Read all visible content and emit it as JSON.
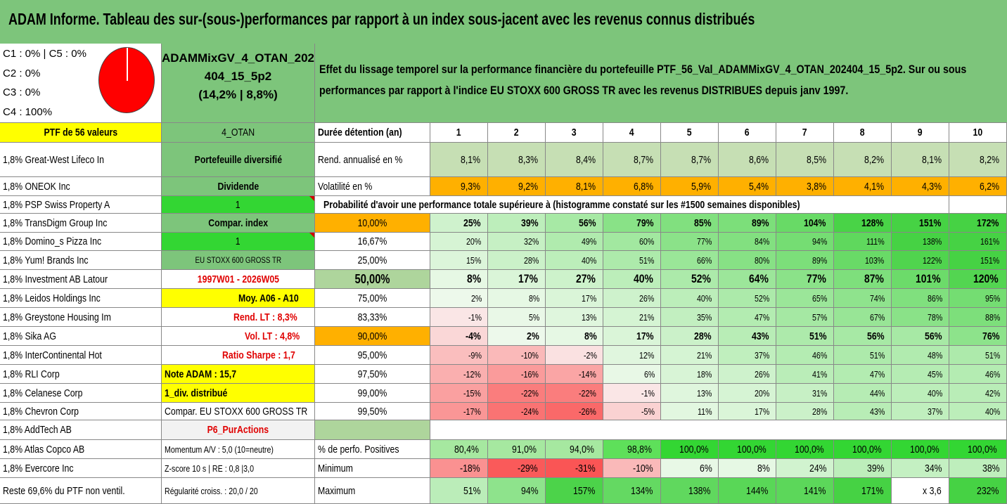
{
  "title": "ADAM Informe. Tableau des sur-(sous-)performances par rapport à un index sous-jacent avec les revenus connus distribués",
  "info": {
    "line1": "C1 : 0% | C5 : 0%",
    "line2": "C2 : 0%",
    "line3": "C3 : 0%",
    "line4": "C4 : 100%",
    "pie_color": "#ff0000"
  },
  "portfolio": {
    "name_line1": "ADAMMixGV_4_OTAN_202",
    "name_line2": "404_15_5p2",
    "name_line3": "(14,2% | 8,8%)"
  },
  "description": "Effet du lissage temporel sur la performance financière du portefeuille PTF_56_Val_ADAMMixGV_4_OTAN_202404_15_5p2. Sur ou sous performances par rapport à l'indice EU STOXX 600 GROSS TR avec les revenus DISTRIBUES depuis janv 1997.",
  "ptf_header": "PTF de 56 valeurs",
  "ptf_tag": "4_OTAN",
  "holdings": [
    "1,8% Great-West Lifeco In",
    "1,8% ONEOK Inc",
    "1,8% PSP Swiss Property A",
    "1,8% TransDigm Group Inc",
    "1,8% Domino_s Pizza Inc",
    "1,8% Yum! Brands Inc",
    "1,8% Investment AB Latour",
    "1,8% Leidos Holdings Inc",
    "1,8% Greystone Housing Im",
    "1,8% Sika AG",
    "1,8% InterContinental Hot",
    "1,8% RLI Corp",
    "1,8% Celanese Corp",
    "1,8% Chevron Corp",
    "1,8% AddTech AB",
    "1,8% Atlas Copco AB",
    "1,8% Evercore Inc",
    "Reste 69,6% du PTF non ventil."
  ],
  "params": [
    "Portefeuille diversifié",
    "Dividende",
    "1",
    "Compar. index",
    "1",
    "EU STOXX 600 GROSS TR",
    "1997W01 - 2026W05",
    "Moy. A06 - A10",
    "Rend. LT : 8,3%",
    "Vol. LT : 4,8%",
    "Ratio Sharpe : 1,7",
    "Note ADAM : 15,7",
    "1_div. distribué",
    "Compar. EU STOXX 600 GROSS TR",
    "P6_PurActions",
    "Momentum A/V : 5,0 (10=neutre)",
    "Z-score 10 s | RE : 0,8 |3,0",
    "Régularité croiss. : 20,0 / 20"
  ],
  "table": {
    "header_label": "Durée détention (an)",
    "years": [
      "1",
      "2",
      "3",
      "4",
      "5",
      "6",
      "7",
      "8",
      "9",
      "10"
    ],
    "rend_label": "Rend. annualisé en %",
    "rend": [
      "8,1%",
      "8,3%",
      "8,4%",
      "8,7%",
      "8,7%",
      "8,6%",
      "8,5%",
      "8,2%",
      "8,1%",
      "8,2%"
    ],
    "vol_label": "Volatilité en %",
    "vol": [
      "9,3%",
      "9,2%",
      "8,1%",
      "6,8%",
      "5,9%",
      "5,4%",
      "3,8%",
      "4,1%",
      "4,3%",
      "6,2%"
    ],
    "prob_title": "Probabilité d'avoir une performance totale supérieure à (histogramme constaté sur les #1500 semaines disponibles)",
    "prob_rows": [
      {
        "label": "10,00%",
        "values": [
          "25%",
          "39%",
          "56%",
          "79%",
          "85%",
          "89%",
          "104%",
          "128%",
          "151%",
          "172%"
        ]
      },
      {
        "label": "16,67%",
        "values": [
          "20%",
          "32%",
          "49%",
          "60%",
          "77%",
          "84%",
          "94%",
          "111%",
          "138%",
          "161%"
        ]
      },
      {
        "label": "25,00%",
        "values": [
          "15%",
          "28%",
          "40%",
          "51%",
          "66%",
          "80%",
          "89%",
          "103%",
          "122%",
          "151%"
        ]
      },
      {
        "label": "50,00%",
        "values": [
          "8%",
          "17%",
          "27%",
          "40%",
          "52%",
          "64%",
          "77%",
          "87%",
          "101%",
          "120%"
        ]
      },
      {
        "label": "75,00%",
        "values": [
          "2%",
          "8%",
          "17%",
          "26%",
          "40%",
          "52%",
          "65%",
          "74%",
          "86%",
          "95%"
        ]
      },
      {
        "label": "83,33%",
        "values": [
          "-1%",
          "5%",
          "13%",
          "21%",
          "35%",
          "47%",
          "57%",
          "67%",
          "78%",
          "88%"
        ]
      },
      {
        "label": "90,00%",
        "values": [
          "-4%",
          "2%",
          "8%",
          "17%",
          "28%",
          "43%",
          "51%",
          "56%",
          "56%",
          "76%"
        ]
      },
      {
        "label": "95,00%",
        "values": [
          "-9%",
          "-10%",
          "-2%",
          "12%",
          "21%",
          "37%",
          "46%",
          "51%",
          "48%",
          "51%"
        ]
      },
      {
        "label": "97,50%",
        "values": [
          "-12%",
          "-16%",
          "-14%",
          "6%",
          "18%",
          "26%",
          "41%",
          "47%",
          "45%",
          "46%"
        ]
      },
      {
        "label": "99,00%",
        "values": [
          "-15%",
          "-22%",
          "-22%",
          "-1%",
          "13%",
          "20%",
          "31%",
          "44%",
          "40%",
          "42%"
        ]
      },
      {
        "label": "99,50%",
        "values": [
          "-17%",
          "-24%",
          "-26%",
          "-5%",
          "11%",
          "17%",
          "28%",
          "43%",
          "37%",
          "40%"
        ]
      }
    ],
    "pos_label": "% de perfo. Positives",
    "pos": [
      "80,4%",
      "91,0%",
      "94,0%",
      "98,8%",
      "100,0%",
      "100,0%",
      "100,0%",
      "100,0%",
      "100,0%",
      "100,0%"
    ],
    "min_label": "Minimum",
    "min": [
      "-18%",
      "-29%",
      "-31%",
      "-10%",
      "6%",
      "8%",
      "24%",
      "39%",
      "34%",
      "38%"
    ],
    "max_label": "Maximum",
    "max": [
      "51%",
      "94%",
      "157%",
      "134%",
      "138%",
      "144%",
      "141%",
      "171%",
      "x 3,6",
      "232%"
    ]
  },
  "colors": {
    "header_green": "#7dc57b",
    "bright_green": "#33d633",
    "yellow": "#ffff00",
    "orange": "#ffb000",
    "red_text": "#e00000"
  }
}
